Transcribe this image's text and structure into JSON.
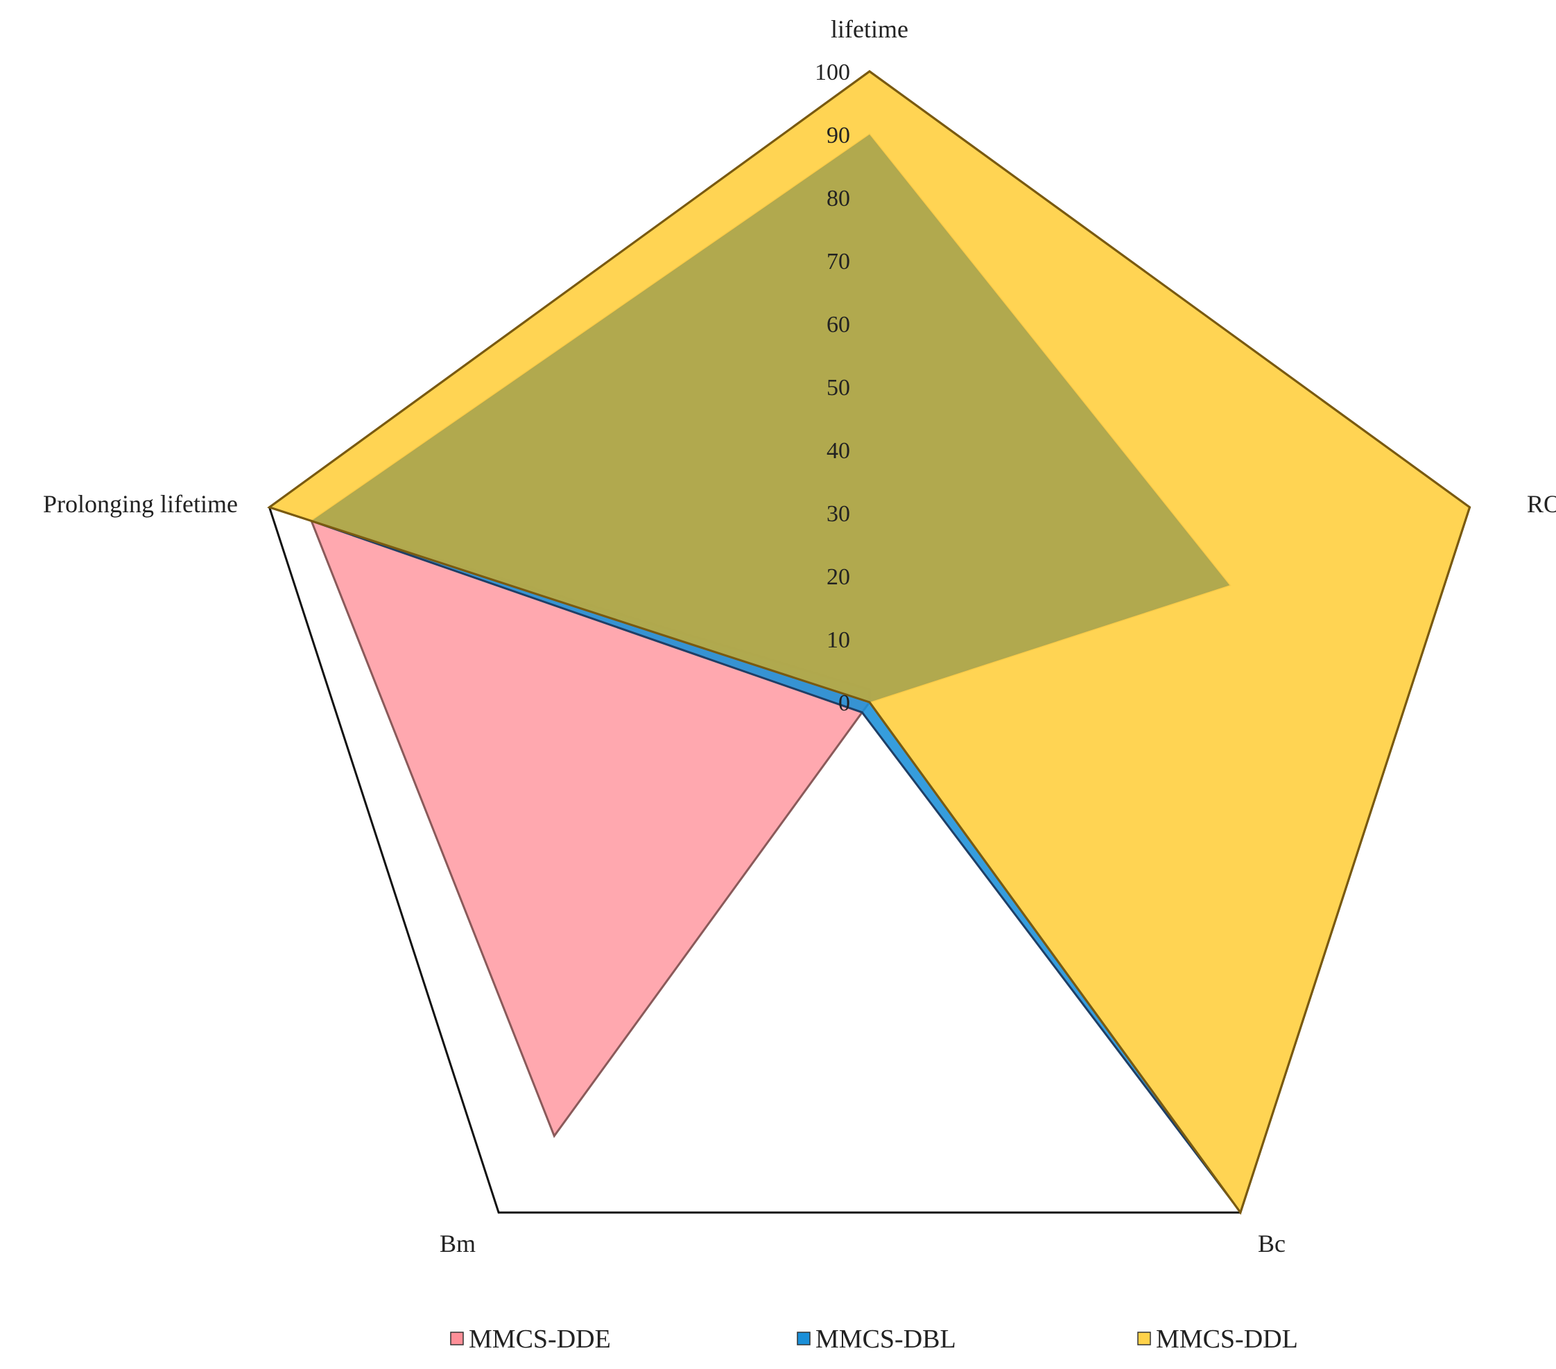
{
  "chart_data": {
    "type": "radar",
    "axes": [
      "lifetime",
      "ROI",
      "Bc",
      "Bm",
      "Prolonging lifetime"
    ],
    "rlim": [
      0,
      100
    ],
    "ticks": [
      0,
      10,
      20,
      30,
      40,
      50,
      60,
      70,
      80,
      90,
      100
    ],
    "grid": true,
    "legend_position": "bottom",
    "series": [
      {
        "name": "MMCS-DDE",
        "values": [
          90,
          60,
          0,
          85,
          93
        ],
        "color": "#ff8f98",
        "opacity": 0.78,
        "stroke": "#8a5a5a"
      },
      {
        "name": "MMCS-DBL",
        "values": [
          2,
          0,
          98,
          2,
          93
        ],
        "color": "#1a8fd8",
        "opacity": 0.88,
        "stroke": "#1f3f66"
      },
      {
        "name": "MMCS-DDL",
        "values": [
          100,
          100,
          100,
          0,
          100
        ],
        "color": "#ffd24a",
        "opacity": 0.95,
        "stroke": "#7a5a10"
      }
    ],
    "overlap_color": "#a8a44e",
    "overlap_opacity": 0.9
  }
}
